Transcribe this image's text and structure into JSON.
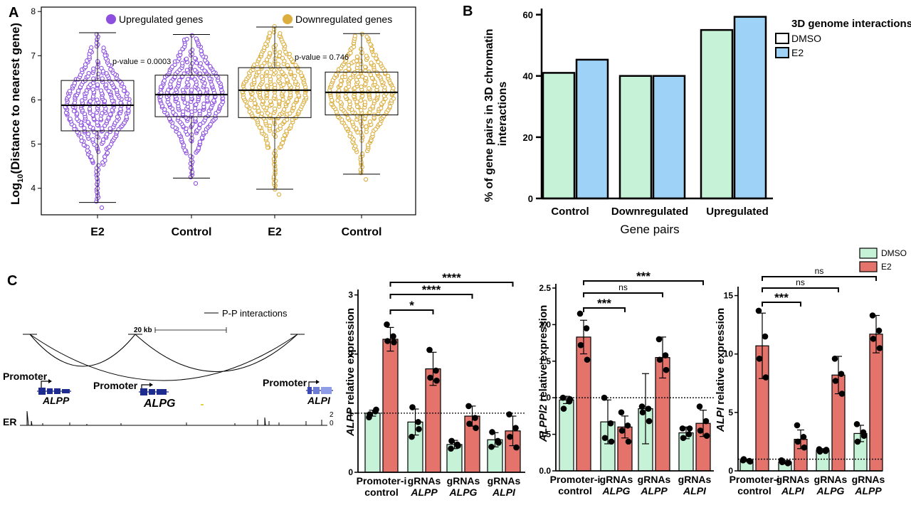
{
  "panels": {
    "a": "A",
    "b": "B",
    "c": "C"
  },
  "colors": {
    "up": "#8d4fe0",
    "down": "#dcae3e",
    "dmso": "#c6f3d8",
    "e2": "#e4736c",
    "e2_b": "#9ed2f7",
    "gene": "#1f2c8f"
  },
  "chart_data": [
    {
      "id": "A",
      "type": "box-beeswarm",
      "ylabel": "Log10(Distance to nearest gene)",
      "ylabel_main": "Log",
      "ylabel_sub": "10",
      "ylabel_rest": "(Distance to nearest gene)",
      "ylim": [
        3.4,
        8.1
      ],
      "yticks": [
        4,
        5,
        6,
        7,
        8
      ],
      "legend": [
        "Upregulated genes",
        "Downregulated genes"
      ],
      "categories": [
        "E2",
        "Control",
        "E2",
        "Control"
      ],
      "groups": [
        {
          "category": "E2",
          "set": "Upregulated genes",
          "min": 3.68,
          "q1": 5.3,
          "median": 5.88,
          "q3": 6.44,
          "max": 7.52
        },
        {
          "category": "Control",
          "set": "Upregulated genes",
          "min": 4.23,
          "q1": 5.62,
          "median": 6.12,
          "q3": 6.56,
          "max": 7.48
        },
        {
          "category": "E2",
          "set": "Downregulated genes",
          "min": 3.98,
          "q1": 5.6,
          "median": 6.22,
          "q3": 6.73,
          "max": 7.65
        },
        {
          "category": "Control",
          "set": "Downregulated genes",
          "min": 4.32,
          "q1": 5.66,
          "median": 6.17,
          "q3": 6.63,
          "max": 7.5
        }
      ],
      "pvalues": [
        "p-value =  0.0003",
        "p-value =  0.746"
      ]
    },
    {
      "id": "B",
      "type": "bar",
      "ylabel": "% of gene pairs in 3D chromatin interactions",
      "ylabel_line1": "% of gene pairs in 3D chromatin",
      "ylabel_line2": "interactions",
      "xlabel": "Gene pairs",
      "ylim": [
        0,
        62
      ],
      "yticks": [
        0,
        20,
        40,
        60
      ],
      "categories": [
        "Control",
        "Downregulated",
        "Upregulated"
      ],
      "series": [
        {
          "name": "DMSO",
          "values": [
            41,
            40,
            55
          ]
        },
        {
          "name": "E2",
          "values": [
            45.3,
            40,
            59.3
          ]
        }
      ],
      "legend_title": "3D genome interactions"
    },
    {
      "id": "C1",
      "type": "bar",
      "ylabel": "ALPP relative expression",
      "ylabel_gene": "ALPP",
      "ylabel_rest": " relative expression",
      "ylim": [
        0,
        3.02
      ],
      "yticks": [
        0,
        1,
        2,
        3
      ],
      "baseline": 1.0,
      "categories": [
        [
          "Promoter-i",
          "control"
        ],
        [
          "gRNAs",
          "ALPP"
        ],
        [
          "gRNAs",
          "ALPG"
        ],
        [
          "gRNAs",
          "ALPI"
        ]
      ],
      "series": [
        {
          "name": "DMSO",
          "values": [
            1.0,
            0.85,
            0.47,
            0.55
          ],
          "err": [
            0.05,
            0.22,
            0.07,
            0.12
          ],
          "points": [
            [
              0.93,
              1.03,
              0.98,
              1.06
            ],
            [
              0.6,
              0.85,
              1.1,
              0.73
            ],
            [
              0.4,
              0.47,
              0.53,
              0.45
            ],
            [
              0.43,
              0.53,
              0.68,
              0.5
            ]
          ]
        },
        {
          "name": "E2",
          "values": [
            2.25,
            1.75,
            0.95,
            0.7
          ],
          "err": [
            0.2,
            0.28,
            0.17,
            0.25
          ],
          "points": [
            [
              2.5,
              2.3,
              2.22,
              2.2
            ],
            [
              2.07,
              1.72,
              1.6,
              1.55
            ],
            [
              1.12,
              0.92,
              0.82,
              0.75
            ],
            [
              0.98,
              0.75,
              0.6,
              0.42
            ]
          ]
        }
      ],
      "significance": [
        "*",
        "****",
        "****"
      ]
    },
    {
      "id": "C2",
      "type": "bar",
      "ylabel": "ALPPl2 relative expression",
      "ylabel_gene": "ALPPl2",
      "ylabel_rest": " relative expression",
      "ylim": [
        0,
        2.5
      ],
      "yticks": [
        "0.0",
        "0.5",
        "1.0",
        "1.5",
        "2.0",
        "2.5"
      ],
      "baseline": 1.0,
      "categories": [
        [
          "Promoter-i",
          "control"
        ],
        [
          "gRNAs",
          "ALPG"
        ],
        [
          "gRNAs",
          "ALPP"
        ],
        [
          "gRNAs",
          "ALPI"
        ]
      ],
      "series": [
        {
          "name": "DMSO",
          "values": [
            0.97,
            0.67,
            0.85,
            0.52
          ],
          "err": [
            0.05,
            0.3,
            0.48,
            0.08
          ],
          "points": [
            [
              1.0,
              0.95,
              0.85,
              0.98
            ],
            [
              1.0,
              0.65,
              0.45,
              0.4
            ],
            [
              0.88,
              0.85,
              0.8,
              0.68
            ],
            [
              0.58,
              0.5,
              0.45,
              0.58
            ]
          ]
        },
        {
          "name": "E2",
          "values": [
            1.83,
            0.6,
            1.55,
            0.65
          ],
          "err": [
            0.23,
            0.15,
            0.28,
            0.18
          ],
          "points": [
            [
              2.15,
              1.95,
              1.72,
              1.52
            ],
            [
              0.8,
              0.62,
              0.55,
              0.4
            ],
            [
              1.8,
              1.58,
              1.52,
              1.38
            ],
            [
              0.88,
              0.68,
              0.55,
              0.48
            ]
          ]
        }
      ],
      "significance": [
        "***",
        "ns",
        "***"
      ]
    },
    {
      "id": "C3",
      "type": "bar",
      "ylabel": "ALPI relative expression",
      "ylabel_gene": "ALPI",
      "ylabel_rest": " relative expression",
      "ylim": [
        0,
        15.4
      ],
      "yticks": [
        "0",
        "5",
        "10",
        "15"
      ],
      "baseline": 1.0,
      "categories": [
        [
          "Promoter-i",
          "control"
        ],
        [
          "gRNAs",
          "ALPI"
        ],
        [
          "gRNAs",
          "ALPG"
        ],
        [
          "gRNAs",
          "ALPP"
        ]
      ],
      "series": [
        {
          "name": "DMSO",
          "values": [
            0.9,
            0.75,
            1.75,
            3.2
          ],
          "err": [
            0.1,
            0.15,
            0.15,
            0.7
          ],
          "points": [
            [
              0.9,
              0.85,
              1.0,
              0.8
            ],
            [
              0.9,
              0.65,
              0.75,
              0.7
            ],
            [
              1.85,
              1.7,
              1.65,
              1.8
            ],
            [
              4.0,
              3.3,
              2.5,
              3.0
            ]
          ]
        },
        {
          "name": "E2",
          "values": [
            10.7,
            2.7,
            8.2,
            11.7
          ],
          "err": [
            2.8,
            0.8,
            1.6,
            1.6
          ],
          "points": [
            [
              13.7,
              11.5,
              9.6,
              8.0
            ],
            [
              3.9,
              2.9,
              2.5,
              2.0
            ],
            [
              9.6,
              8.3,
              7.7,
              6.6
            ],
            [
              13.3,
              12.0,
              11.3,
              10.5
            ]
          ]
        }
      ],
      "significance": [
        "***",
        "ns",
        "ns"
      ]
    }
  ],
  "legend_c": [
    "DMSO",
    "E2"
  ],
  "genome": {
    "interactions_label": "P-P interactions",
    "scale_label": "20 kb",
    "promoter_label": "Promoter",
    "genes": [
      "ALPP",
      "ALPG",
      "ALPI"
    ],
    "track_label": "ER",
    "track_max": "2",
    "track_min": "0"
  }
}
